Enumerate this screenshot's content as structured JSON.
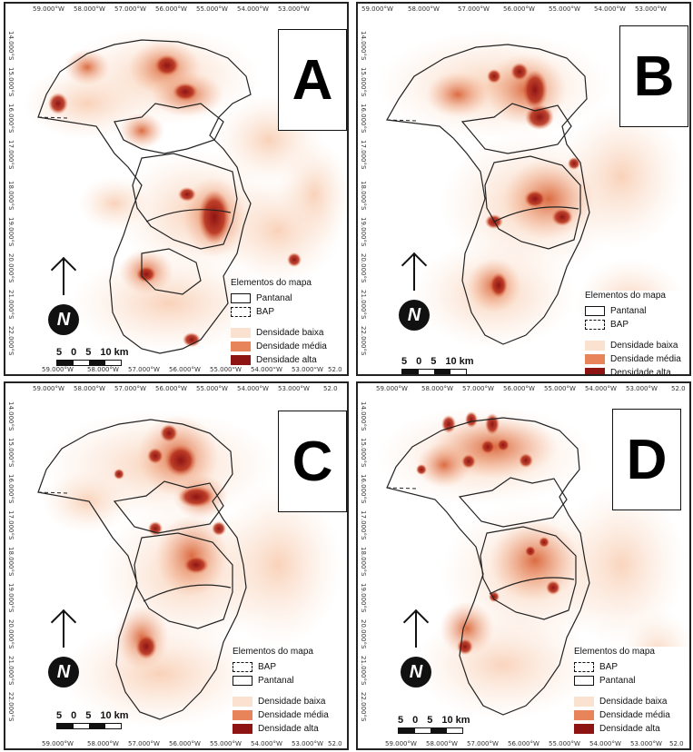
{
  "panels": [
    {
      "letter": "A",
      "legend": {
        "title": "Elementos do mapa",
        "items": [
          {
            "label": "Pantanal",
            "style": "solid"
          },
          {
            "label": "BAP",
            "style": "dashed"
          },
          {
            "label": "Densidade baixa",
            "color": "#fbe2d0"
          },
          {
            "label": "Densidade média",
            "color": "#e8845a"
          },
          {
            "label": "Densidade alta",
            "color": "#8e1414"
          }
        ]
      },
      "scale": {
        "labels": [
          "5",
          "0",
          "5",
          "10 km"
        ]
      },
      "north": "N",
      "lon_ticks": [
        "59.000°W",
        "58.000°W",
        "57.000°W",
        "56.000°W",
        "55.000°W",
        "54.000°W",
        "53.000°W",
        "52.0"
      ],
      "lat_ticks": [
        "14.000°S",
        "15.000°S",
        "16.000°S",
        "17.000°S",
        "18.000°S",
        "19.000°S",
        "20.000°S",
        "21.000°S",
        "22.000°S"
      ]
    },
    {
      "letter": "B",
      "legend": {
        "title": "Elementos do mapa",
        "items": [
          {
            "label": "Pantanal",
            "style": "solid"
          },
          {
            "label": "BAP",
            "style": "dashed"
          },
          {
            "label": "Densidade baixa",
            "color": "#fbe2d0"
          },
          {
            "label": "Densidade média",
            "color": "#e8845a"
          },
          {
            "label": "Densidade alta",
            "color": "#8e1414"
          }
        ]
      },
      "scale": {
        "labels": [
          "5",
          "0",
          "5",
          "10 km"
        ]
      },
      "north": "N",
      "lon_ticks": [
        "59.000°W",
        "58.000°W",
        "57.000°W",
        "56.000°W",
        "55.000°W",
        "54.000°W",
        "53.000°W"
      ],
      "lat_ticks": [
        "14.000°S",
        "15.000°S",
        "16.000°S",
        "17.000°S",
        "18.000°S",
        "19.000°S",
        "20.000°S",
        "21.000°S",
        "22.000°S"
      ]
    },
    {
      "letter": "C",
      "legend": {
        "title": "Elementos do mapa",
        "items": [
          {
            "label": "BAP",
            "style": "dashed"
          },
          {
            "label": "Pantanal",
            "style": "solid"
          },
          {
            "label": "Densidade baixa",
            "color": "#fbe2d0"
          },
          {
            "label": "Densidade média",
            "color": "#e8845a"
          },
          {
            "label": "Densidade alta",
            "color": "#8e1414"
          }
        ]
      },
      "scale": {
        "labels": [
          "5",
          "0",
          "5",
          "10 km"
        ]
      },
      "north": "N",
      "lon_ticks": [
        "59.000°W",
        "58.000°W",
        "57.000°W",
        "56.000°W",
        "55.000°W",
        "54.000°W",
        "53.000°W",
        "52.0"
      ],
      "lat_ticks": [
        "14.000°S",
        "15.000°S",
        "16.000°S",
        "17.000°S",
        "18.000°S",
        "19.000°S",
        "20.000°S",
        "21.000°S",
        "22.000°S"
      ]
    },
    {
      "letter": "D",
      "legend": {
        "title": "Elementos do mapa",
        "items": [
          {
            "label": "BAP",
            "style": "dashed"
          },
          {
            "label": "Pantanal",
            "style": "solid"
          },
          {
            "label": "Densidade baixa",
            "color": "#fbe2d0"
          },
          {
            "label": "Densidade média",
            "color": "#e8845a"
          },
          {
            "label": "Densidade alta",
            "color": "#8e1414"
          }
        ]
      },
      "scale": {
        "labels": [
          "5",
          "0",
          "5",
          "10 km"
        ]
      },
      "north": "N",
      "lon_ticks": [
        "59.000°W",
        "58.000°W",
        "57.000°W",
        "56.000°W",
        "55.000°W",
        "54.000°W",
        "53.000°W",
        "52.0"
      ],
      "lat_ticks": [
        "14.000°S",
        "15.000°S",
        "16.000°S",
        "17.000°S",
        "18.000°S",
        "19.000°S",
        "20.000°S",
        "21.000°S",
        "22.000°S"
      ]
    }
  ]
}
